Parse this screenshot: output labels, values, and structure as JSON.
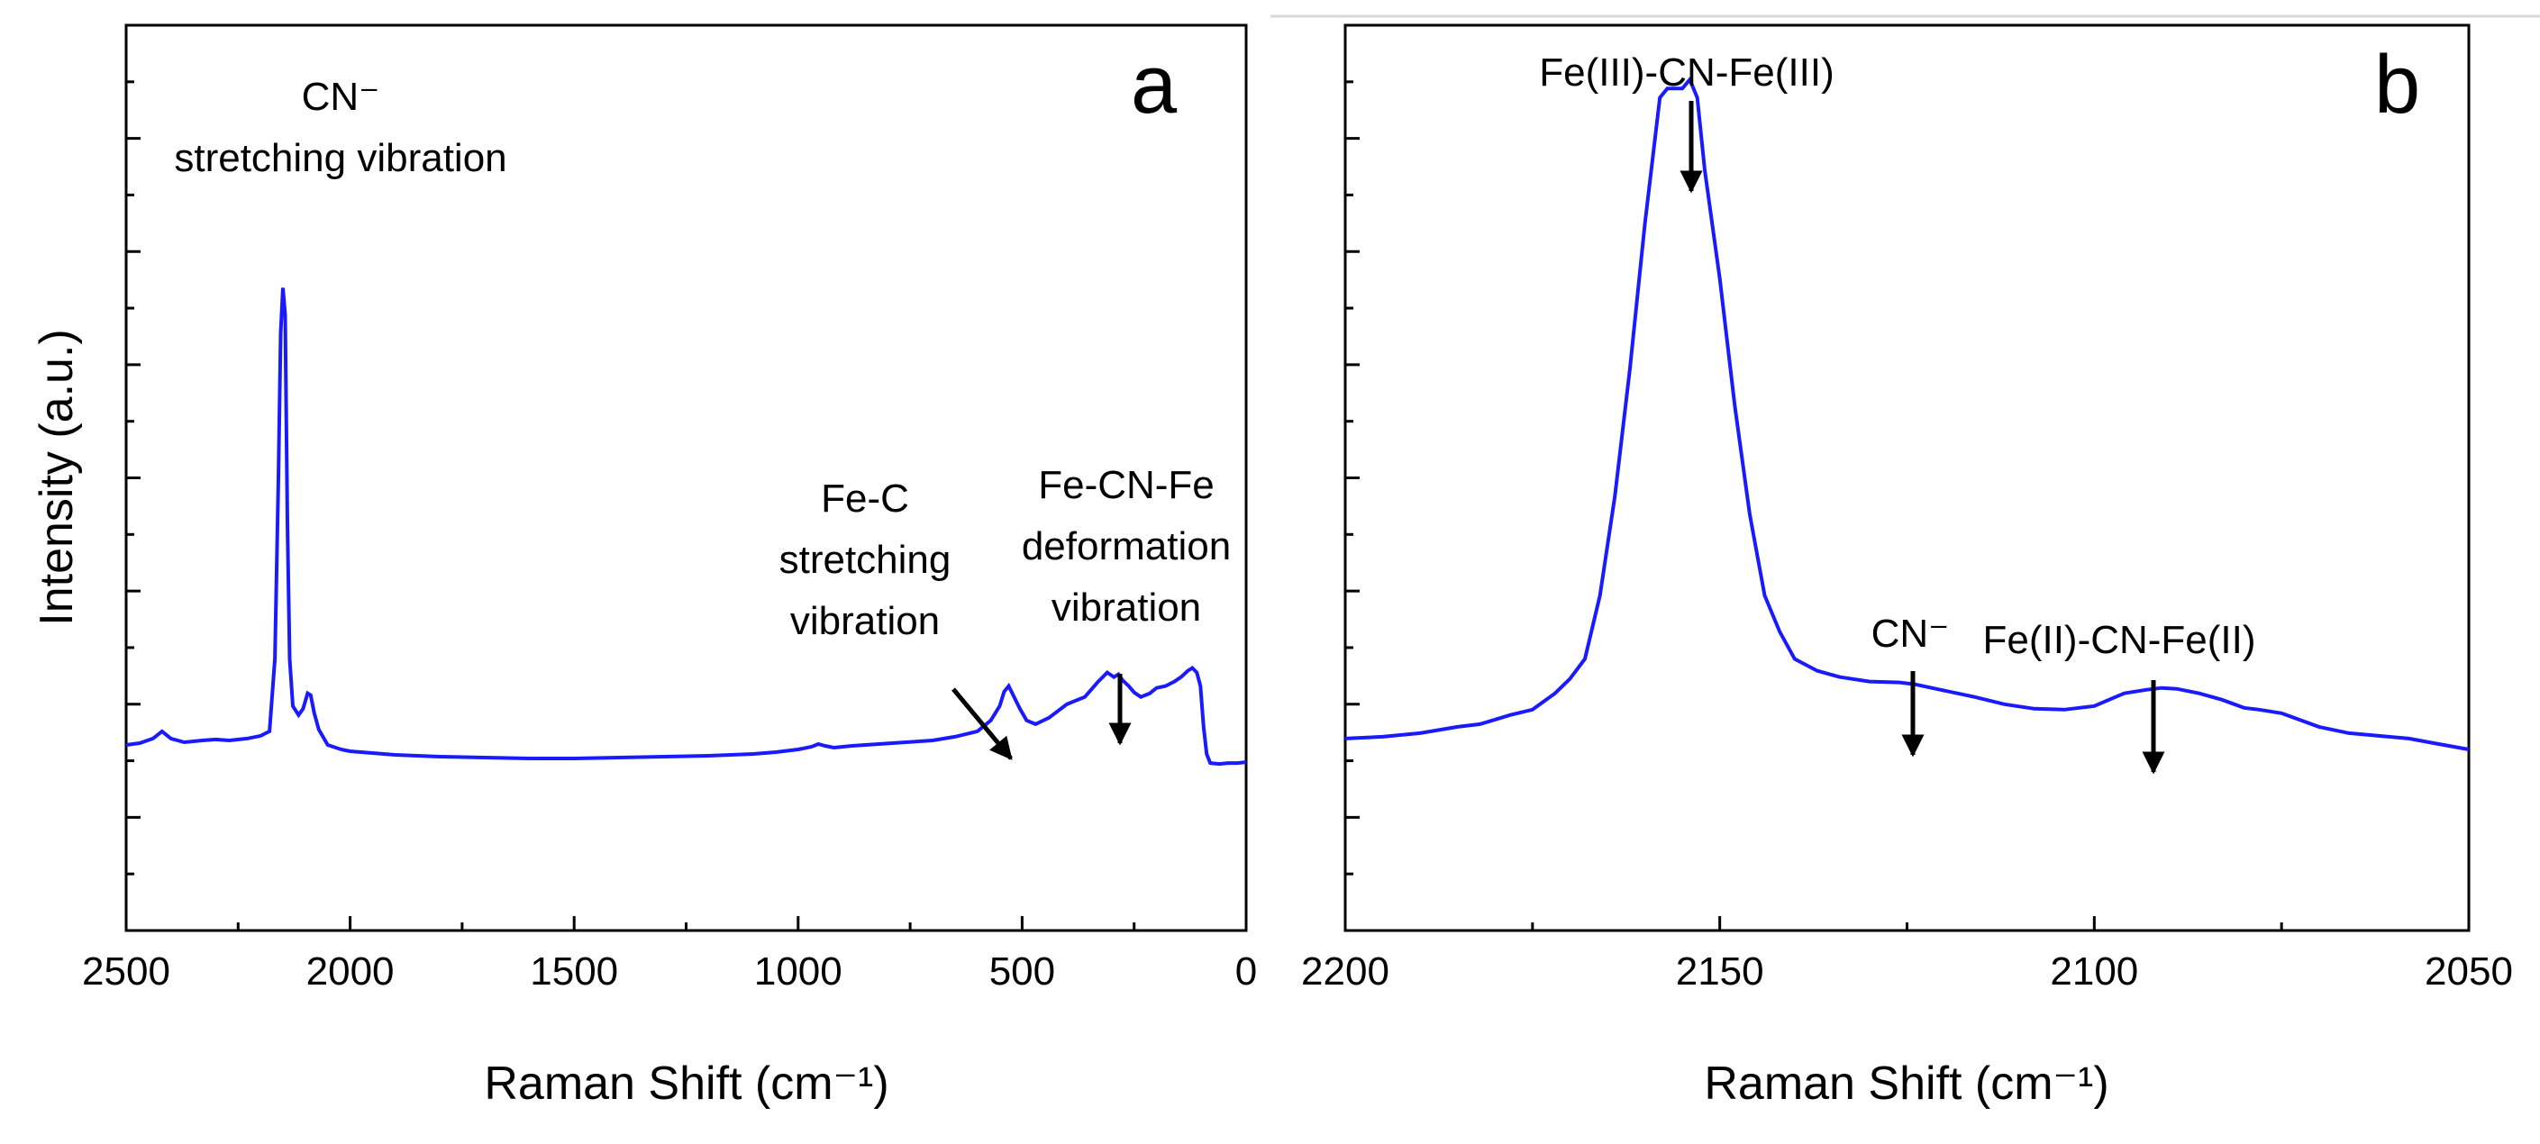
{
  "figure": {
    "ylabel": "Intensity (a.u.)"
  },
  "chart_data": [
    {
      "panel": "a",
      "type": "line",
      "xlabel": "Raman Shift (cm⁻¹)",
      "ylabel": "Intensity (a.u.)",
      "xlim": [
        2500,
        0
      ],
      "ylim": [
        0,
        1.0
      ],
      "x_ticks": [
        2500,
        2000,
        1500,
        1000,
        500,
        0
      ],
      "x_tick_labels": [
        "2500",
        "2000",
        "1500",
        "1000",
        "500",
        "0"
      ],
      "y_tick_labels_shown": false,
      "color": "#1a1aff",
      "series": [
        {
          "x": [
            2500,
            2470,
            2440,
            2420,
            2400,
            2370,
            2330,
            2300,
            2270,
            2230,
            2200,
            2180,
            2168,
            2160,
            2155,
            2150,
            2145,
            2140,
            2135,
            2128,
            2115,
            2105,
            2095,
            2088,
            2080,
            2070,
            2050,
            2020,
            2000,
            1950,
            1900,
            1850,
            1800,
            1700,
            1600,
            1500,
            1400,
            1300,
            1200,
            1100,
            1050,
            1000,
            970,
            955,
            940,
            920,
            880,
            820,
            760,
            700,
            650,
            600,
            570,
            550,
            540,
            530,
            520,
            505,
            490,
            470,
            440,
            400,
            360,
            330,
            310,
            295,
            285,
            275,
            262,
            250,
            235,
            215,
            200,
            180,
            160,
            145,
            130,
            120,
            110,
            102,
            95,
            88,
            80,
            60,
            40,
            20,
            0
          ],
          "y": [
            0.205,
            0.207,
            0.212,
            0.22,
            0.212,
            0.208,
            0.21,
            0.211,
            0.21,
            0.212,
            0.215,
            0.22,
            0.3,
            0.5,
            0.66,
            0.71,
            0.68,
            0.45,
            0.3,
            0.248,
            0.238,
            0.245,
            0.262,
            0.26,
            0.24,
            0.222,
            0.205,
            0.2,
            0.198,
            0.196,
            0.194,
            0.193,
            0.192,
            0.191,
            0.19,
            0.19,
            0.191,
            0.192,
            0.193,
            0.195,
            0.197,
            0.2,
            0.203,
            0.206,
            0.204,
            0.202,
            0.204,
            0.206,
            0.208,
            0.21,
            0.214,
            0.22,
            0.232,
            0.248,
            0.264,
            0.27,
            0.26,
            0.245,
            0.232,
            0.228,
            0.235,
            0.25,
            0.258,
            0.275,
            0.285,
            0.28,
            0.283,
            0.276,
            0.27,
            0.263,
            0.258,
            0.262,
            0.268,
            0.27,
            0.275,
            0.28,
            0.287,
            0.29,
            0.285,
            0.27,
            0.225,
            0.195,
            0.185,
            0.184,
            0.185,
            0.185,
            0.186
          ]
        }
      ],
      "annotations": [
        {
          "id": "cn-stretch",
          "lines": [
            "CN⁻",
            "stretching vibration"
          ]
        },
        {
          "id": "fe-c",
          "lines": [
            "Fe-C",
            "stretching",
            "vibration"
          ]
        },
        {
          "id": "fe-cn-fe",
          "lines": [
            "Fe-CN-Fe",
            "deformation",
            "vibration"
          ]
        }
      ],
      "panel_label": "a"
    },
    {
      "panel": "b",
      "type": "line",
      "xlabel": "Raman Shift (cm⁻¹)",
      "xlim": [
        2200,
        2050
      ],
      "ylim": [
        0,
        1.0
      ],
      "x_ticks": [
        2200,
        2150,
        2100,
        2050
      ],
      "x_tick_labels": [
        "2200",
        "2150",
        "2100",
        "2050"
      ],
      "y_tick_labels_shown": false,
      "color": "#1a1aff",
      "series": [
        {
          "x": [
            2200,
            2195,
            2190,
            2185,
            2182,
            2178,
            2175,
            2172,
            2170,
            2168,
            2166,
            2164,
            2162,
            2160,
            2158,
            2157,
            2155,
            2154,
            2153,
            2152,
            2150,
            2148,
            2146,
            2144,
            2142,
            2140,
            2137,
            2134,
            2130,
            2126,
            2124,
            2120,
            2116,
            2112,
            2108,
            2104,
            2100,
            2098,
            2096,
            2093,
            2091,
            2089,
            2086,
            2083,
            2080,
            2078,
            2075,
            2070,
            2066,
            2062,
            2058,
            2054,
            2050
          ],
          "y": [
            0.212,
            0.214,
            0.218,
            0.225,
            0.228,
            0.238,
            0.244,
            0.262,
            0.278,
            0.3,
            0.37,
            0.48,
            0.62,
            0.78,
            0.92,
            0.93,
            0.93,
            0.94,
            0.92,
            0.84,
            0.72,
            0.58,
            0.46,
            0.37,
            0.33,
            0.3,
            0.287,
            0.28,
            0.275,
            0.274,
            0.272,
            0.265,
            0.258,
            0.25,
            0.245,
            0.244,
            0.248,
            0.255,
            0.262,
            0.266,
            0.268,
            0.267,
            0.262,
            0.255,
            0.246,
            0.244,
            0.24,
            0.225,
            0.218,
            0.215,
            0.212,
            0.206,
            0.2
          ]
        }
      ],
      "annotations": [
        {
          "id": "fe3",
          "lines": [
            "Fe(III)-CN-Fe(III)"
          ]
        },
        {
          "id": "cn",
          "lines": [
            "CN⁻"
          ]
        },
        {
          "id": "fe2",
          "lines": [
            "Fe(II)-CN-Fe(II)"
          ]
        }
      ],
      "panel_label": "b"
    }
  ]
}
